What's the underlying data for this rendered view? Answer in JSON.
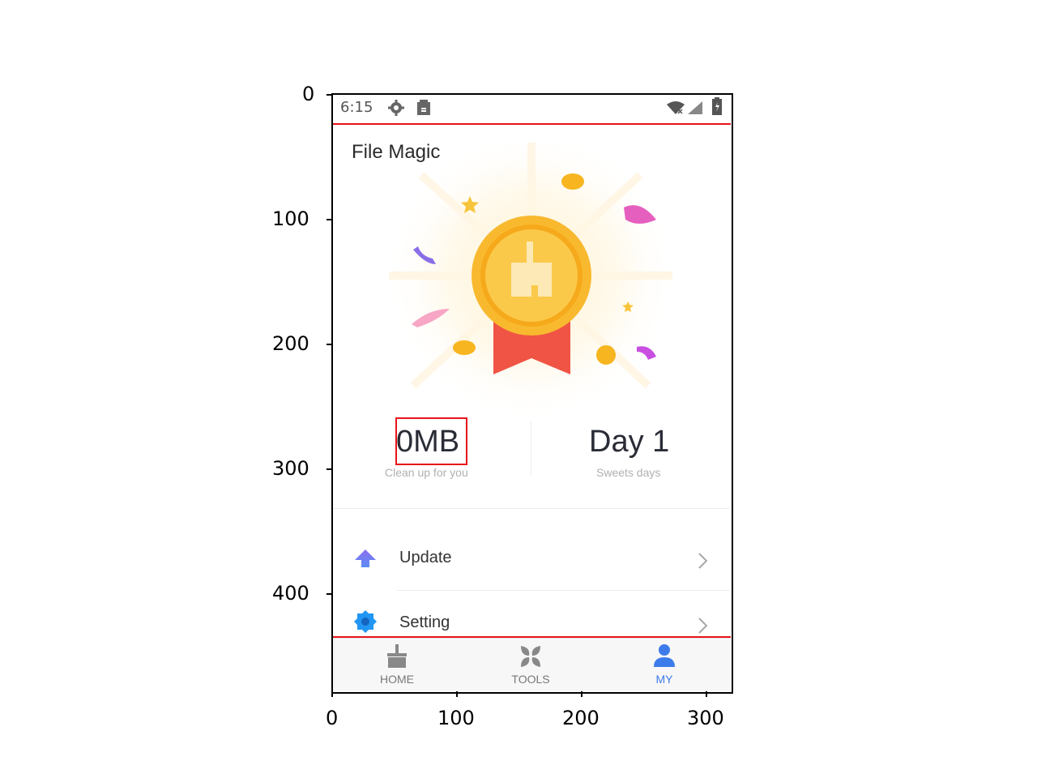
{
  "axes": {
    "y_ticks": [
      "0",
      "100",
      "200",
      "300",
      "400"
    ],
    "x_ticks": [
      "0",
      "100",
      "200",
      "300"
    ]
  },
  "status_bar": {
    "time": "6:15",
    "icons": [
      "gear-icon",
      "sd-card-icon",
      "wifi-icon",
      "signal-icon",
      "battery-icon"
    ]
  },
  "app": {
    "title": "File Magic"
  },
  "stats": {
    "cleaned_value": "0MB",
    "cleaned_label": "Clean up for you",
    "days_value": "Day 1",
    "days_label": "Sweets days"
  },
  "menu": [
    {
      "label": "Update",
      "icon": "upload-arrow-icon"
    },
    {
      "label": "Setting",
      "icon": "gear-badge-icon"
    }
  ],
  "bottom_nav": [
    {
      "label": "HOME",
      "icon": "broom-icon",
      "active": false
    },
    {
      "label": "TOOLS",
      "icon": "grid-icon",
      "active": false
    },
    {
      "label": "MY",
      "icon": "person-icon",
      "active": true
    }
  ],
  "colors": {
    "accent": "#3d7bea",
    "annotation": "#e8131a",
    "medal_gold": "#f9b92e",
    "ribbon_red": "#f05445"
  }
}
